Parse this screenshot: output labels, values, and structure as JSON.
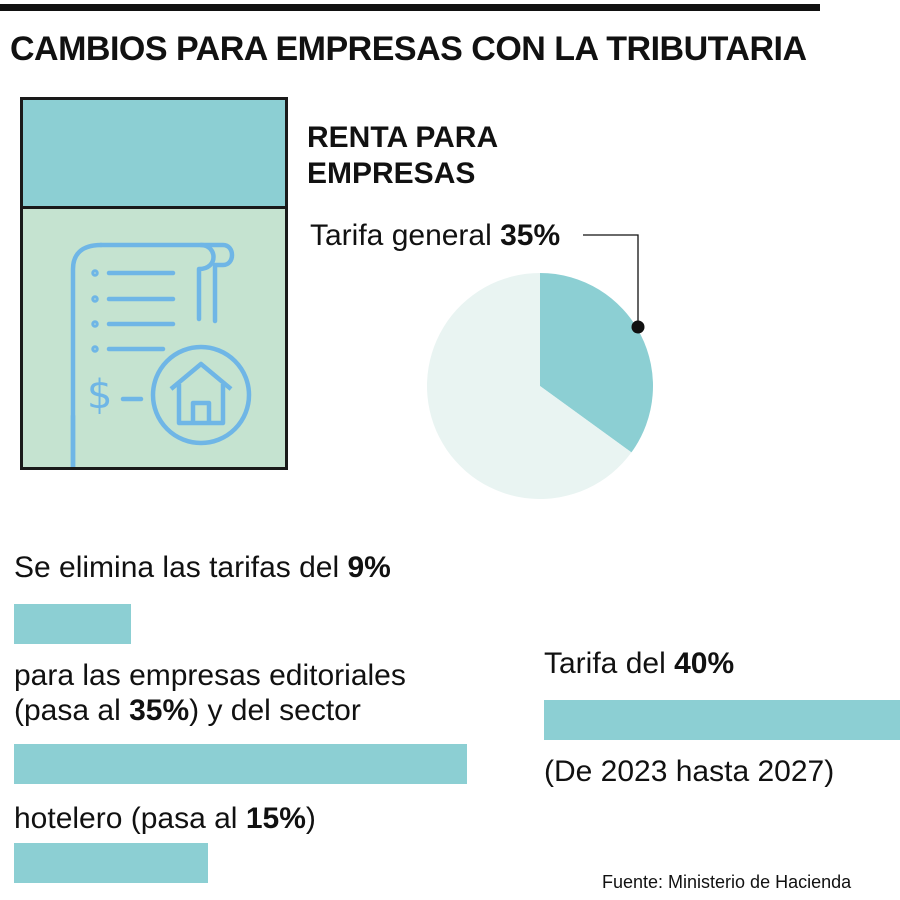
{
  "title": "CAMBIOS PARA EMPRESAS CON LA TRIBUTARIA",
  "subtitle": "RENTA PARA EMPRESAS",
  "pie_label_prefix": "Tarifa general",
  "pie_label_value": "35%",
  "text_1_prefix": "Se elimina las tarifas del",
  "text_1_value": "9%",
  "text_2_line1": "para las empresas editoriales",
  "text_2_prefix": "(pasa al",
  "text_2_value": "35%",
  "text_2_suffix": ") y del sector",
  "text_3_prefix": "hotelero (pasa al",
  "text_3_value": "15%",
  "text_3_suffix": ")",
  "right_prefix": "Tarifa del",
  "right_value": "40%",
  "right_note": "(De 2023 hasta 2027)",
  "source": "Fuente: Ministerio de Hacienda",
  "icons": [
    "receipt-icon",
    "house-icon",
    "dollar-icon"
  ],
  "colors": {
    "accent": "#8ccfd3",
    "pie_rest": "#e9f4f2",
    "card_bg": "#c5e3d0",
    "icon": "#6fb6e6"
  },
  "chart_data": [
    {
      "type": "pie",
      "values": [
        35,
        65
      ],
      "colors": [
        "#8ccfd3",
        "#e9f4f2"
      ]
    },
    {
      "type": "bar",
      "orientation": "horizontal",
      "values": [
        9,
        35,
        15,
        40
      ],
      "unit": "%"
    }
  ]
}
